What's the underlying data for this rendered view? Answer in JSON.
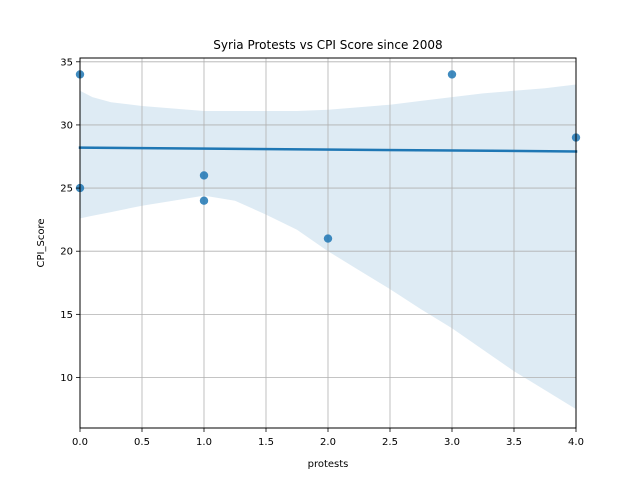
{
  "chart_data": {
    "type": "scatter",
    "title": "Syria Protests vs CPI Score since 2008",
    "xlabel": "protests",
    "ylabel": "CPI_Score",
    "xlim": [
      0,
      4
    ],
    "ylim": [
      6,
      35.3
    ],
    "x_ticks": [
      0.0,
      0.5,
      1.0,
      1.5,
      2.0,
      2.5,
      3.0,
      3.5,
      4.0
    ],
    "x_tick_labels": [
      "0.0",
      "0.5",
      "1.0",
      "1.5",
      "2.0",
      "2.5",
      "3.0",
      "3.5",
      "4.0"
    ],
    "y_ticks": [
      10,
      15,
      20,
      25,
      30,
      35
    ],
    "y_tick_labels": [
      "10",
      "15",
      "20",
      "25",
      "30",
      "35"
    ],
    "grid": true,
    "points": [
      {
        "x": 0,
        "y": 34
      },
      {
        "x": 0,
        "y": 25
      },
      {
        "x": 1,
        "y": 26
      },
      {
        "x": 1,
        "y": 24
      },
      {
        "x": 2,
        "y": 21
      },
      {
        "x": 3,
        "y": 34
      },
      {
        "x": 4,
        "y": 29
      }
    ],
    "regression": {
      "x": [
        0,
        4
      ],
      "y": [
        28.2,
        27.9
      ]
    },
    "confidence_band": {
      "x": [
        0,
        0.1,
        0.25,
        0.5,
        0.75,
        1.0,
        1.25,
        1.5,
        1.75,
        2.0,
        2.25,
        2.5,
        2.75,
        3.0,
        3.25,
        3.5,
        3.75,
        4.0
      ],
      "upper": [
        32.7,
        32.2,
        31.8,
        31.5,
        31.3,
        31.1,
        31.1,
        31.1,
        31.1,
        31.2,
        31.4,
        31.6,
        31.9,
        32.2,
        32.5,
        32.7,
        32.9,
        33.2
      ],
      "lower": [
        22.6,
        22.8,
        23.1,
        23.6,
        24.0,
        24.4,
        24.0,
        22.9,
        21.7,
        20.0,
        18.5,
        17.0,
        15.4,
        13.9,
        12.2,
        10.5,
        9.0,
        7.5
      ]
    },
    "colors": {
      "points": "#1f77b4",
      "line": "#1f77b4",
      "band": "#1f77b4",
      "grid": "#b0b0b0",
      "axes": "#000000"
    }
  }
}
